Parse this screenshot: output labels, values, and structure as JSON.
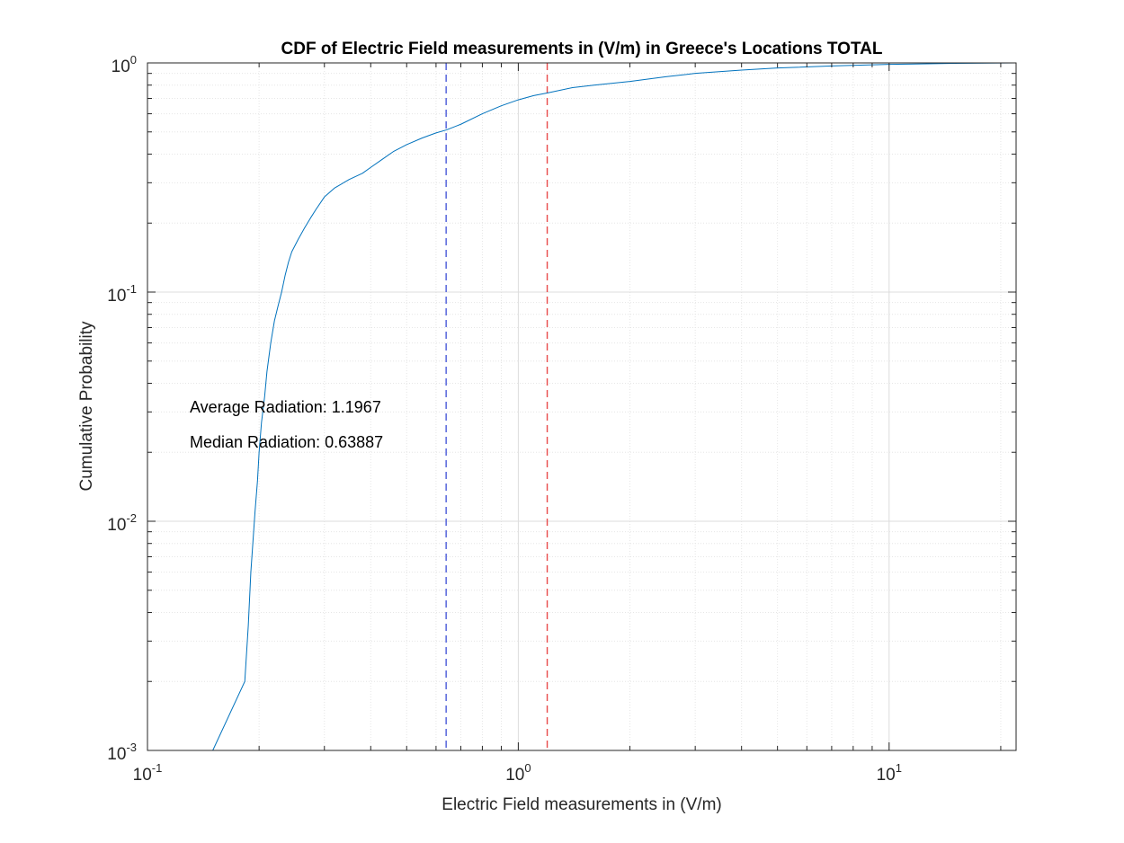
{
  "chart_data": {
    "type": "line",
    "title": "CDF of Electric Field measurements in (V/m) in Greece's Locations TOTAL",
    "xlabel": "Electric Field measurements in (V/m)",
    "ylabel": "Cumulative Probability",
    "xscale": "log",
    "yscale": "log",
    "xlim": [
      0.1,
      22
    ],
    "ylim": [
      0.001,
      1
    ],
    "grid": true,
    "x_ticks": [
      {
        "base": "10",
        "exp": "-1",
        "value": 0.1
      },
      {
        "base": "10",
        "exp": "0",
        "value": 1
      },
      {
        "base": "10",
        "exp": "1",
        "value": 10
      }
    ],
    "y_ticks": [
      {
        "base": "10",
        "exp": "-3",
        "value": 0.001
      },
      {
        "base": "10",
        "exp": "-2",
        "value": 0.01
      },
      {
        "base": "10",
        "exp": "-1",
        "value": 0.1
      },
      {
        "base": "10",
        "exp": "0",
        "value": 1
      }
    ],
    "series": [
      {
        "color": "#0072bd",
        "x": [
          0.15,
          0.183,
          0.187,
          0.19,
          0.195,
          0.198,
          0.2,
          0.203,
          0.207,
          0.21,
          0.215,
          0.22,
          0.225,
          0.23,
          0.235,
          0.24,
          0.245,
          0.255,
          0.265,
          0.275,
          0.285,
          0.3,
          0.32,
          0.35,
          0.38,
          0.4,
          0.43,
          0.46,
          0.5,
          0.55,
          0.6,
          0.64,
          0.7,
          0.8,
          0.9,
          1.0,
          1.1,
          1.2,
          1.4,
          1.6,
          2.0,
          2.5,
          3.0,
          4.0,
          5.0,
          7.0,
          10.0,
          15.0,
          22.0
        ],
        "y": [
          0.001,
          0.002,
          0.0035,
          0.006,
          0.011,
          0.015,
          0.02,
          0.027,
          0.035,
          0.045,
          0.06,
          0.075,
          0.087,
          0.1,
          0.118,
          0.135,
          0.15,
          0.17,
          0.19,
          0.21,
          0.23,
          0.26,
          0.285,
          0.31,
          0.33,
          0.35,
          0.38,
          0.41,
          0.44,
          0.47,
          0.495,
          0.51,
          0.54,
          0.6,
          0.65,
          0.69,
          0.72,
          0.74,
          0.78,
          0.8,
          0.83,
          0.87,
          0.9,
          0.93,
          0.95,
          0.97,
          0.985,
          0.995,
          1.0
        ]
      }
    ],
    "reference_lines": [
      {
        "x": 0.63887,
        "color": "#4a5ad8",
        "style": "dashed"
      },
      {
        "x": 1.1967,
        "color": "#e84a4a",
        "style": "dashed"
      }
    ],
    "annotations": [
      {
        "text": "Average Radiation: 1.1967"
      },
      {
        "text": "Median Radiation: 0.63887"
      }
    ]
  }
}
